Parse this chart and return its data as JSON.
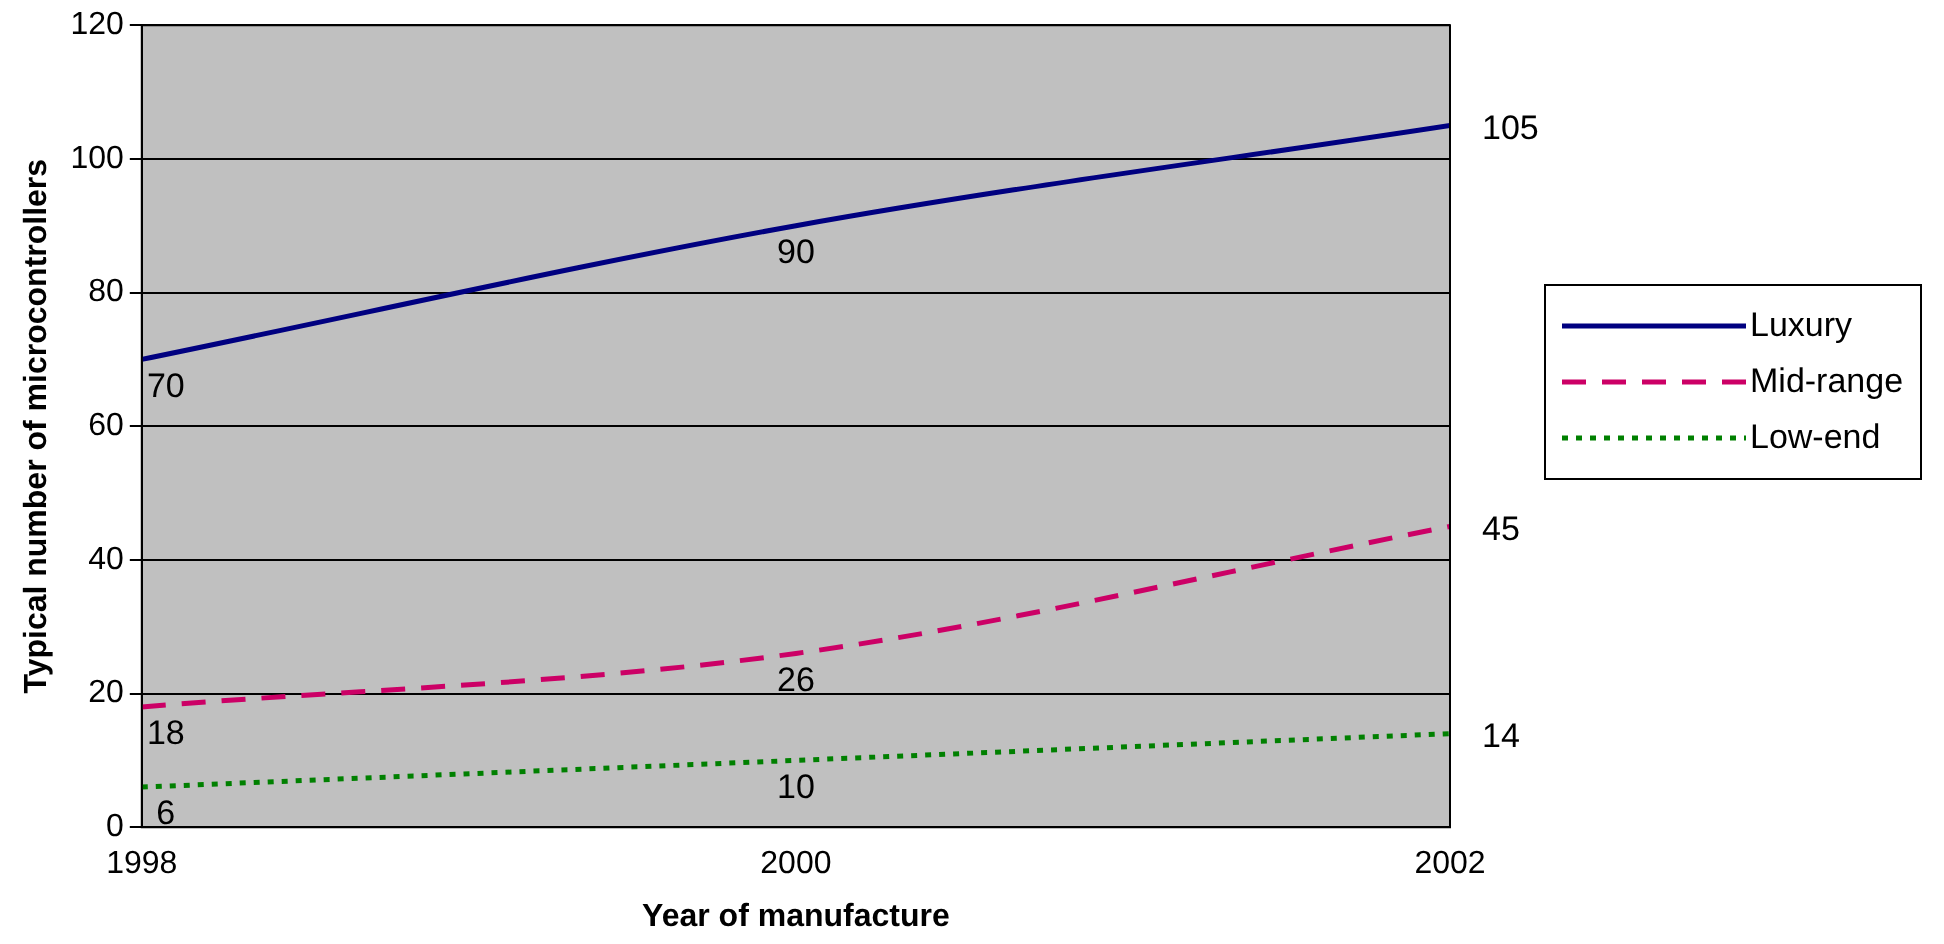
{
  "chart_data": {
    "type": "line",
    "xlabel": "Year of manufacture",
    "ylabel": "Typical number of microcontrollers",
    "x": [
      1998,
      2000,
      2002
    ],
    "xlim": [
      1998,
      2002
    ],
    "xticks": [
      1998,
      2000,
      2002
    ],
    "ylim": [
      0,
      120
    ],
    "yticks": [
      0,
      20,
      40,
      60,
      80,
      100,
      120
    ],
    "series": [
      {
        "name": "Luxury",
        "color": "#000080",
        "line_style": "solid",
        "values": [
          70,
          90,
          105
        ]
      },
      {
        "name": "Mid-range",
        "color": "#cc0066",
        "line_style": "dashed",
        "values": [
          18,
          26,
          45
        ]
      },
      {
        "name": "Low-end",
        "color": "#008000",
        "line_style": "dotted",
        "values": [
          6,
          10,
          14
        ]
      }
    ],
    "grid": "y",
    "legend": "right",
    "marker": "none",
    "data_labels": true
  }
}
